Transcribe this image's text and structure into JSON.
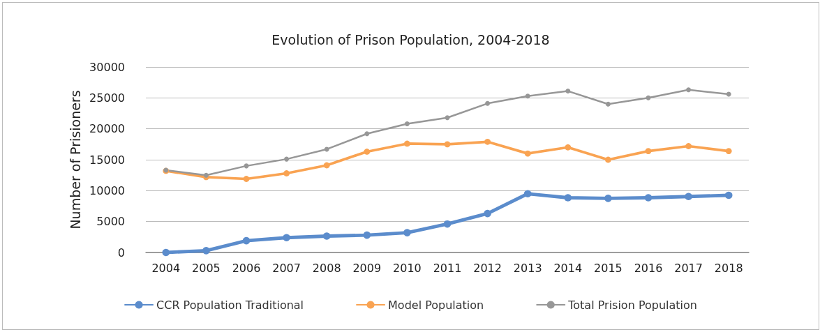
{
  "chart_data": {
    "type": "line",
    "title": "Evolution of Prison Population, 2004-2018",
    "ylabel": "Number of Prisioners",
    "categories": [
      "2004",
      "2005",
      "2006",
      "2007",
      "2008",
      "2009",
      "2010",
      "2011",
      "2012",
      "2013",
      "2014",
      "2015",
      "2016",
      "2017",
      "2018"
    ],
    "series": [
      {
        "name": "CCR Population Traditional",
        "color": "#5b8ccc",
        "values": [
          0,
          300,
          1900,
          2400,
          2650,
          2800,
          3200,
          4600,
          6300,
          9500,
          8850,
          8750,
          8850,
          9050,
          9250
        ]
      },
      {
        "name": "Model Population",
        "color": "#f9a352",
        "values": [
          13200,
          12200,
          11900,
          12800,
          14100,
          16300,
          17600,
          17500,
          17900,
          16000,
          17000,
          15000,
          16400,
          17200,
          16400
        ]
      },
      {
        "name": "Total Prision Population",
        "color": "#979797",
        "values": [
          13300,
          12500,
          14000,
          15100,
          16700,
          19200,
          20800,
          21800,
          24100,
          25300,
          26100,
          24000,
          25000,
          26300,
          25600
        ]
      }
    ],
    "ylim": [
      0,
      30000
    ],
    "yticks": [
      0,
      5000,
      10000,
      15000,
      20000,
      25000,
      30000
    ],
    "grid": "y",
    "legend": "bottom",
    "marker": "circle",
    "line_style": "solid"
  }
}
